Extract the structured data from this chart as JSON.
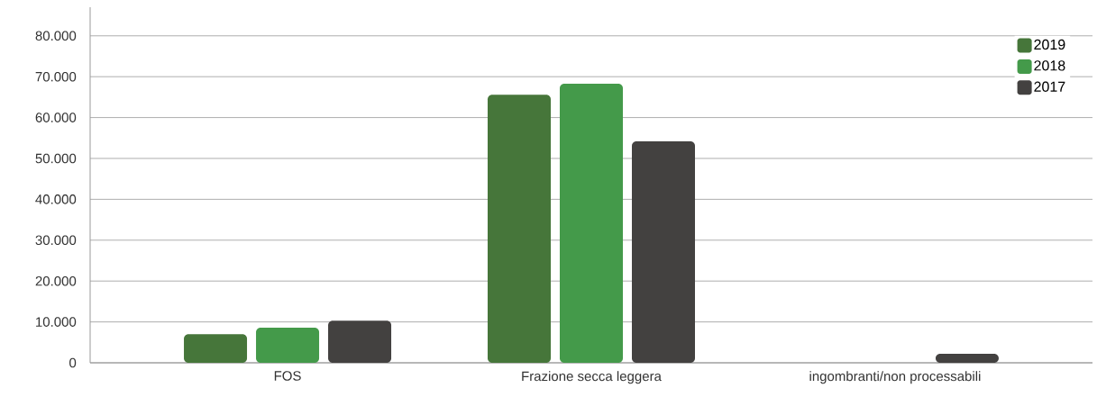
{
  "chart_data": {
    "type": "bar",
    "categories": [
      "FOS",
      "Frazione secca leggera",
      "ingombranti/non processabili"
    ],
    "series": [
      {
        "name": "2019",
        "color": "#46763a",
        "values": [
          7000,
          65600,
          0
        ]
      },
      {
        "name": "2018",
        "color": "#449a4a",
        "values": [
          8600,
          68300,
          0
        ]
      },
      {
        "name": "2017",
        "color": "#434140",
        "values": [
          10300,
          54200,
          2200
        ]
      }
    ],
    "ylim": [
      0,
      87000
    ],
    "yticks": [
      {
        "value": 0,
        "label": "0"
      },
      {
        "value": 10000,
        "label": "10.000"
      },
      {
        "value": 20000,
        "label": "20.000"
      },
      {
        "value": 30000,
        "label": "30.000"
      },
      {
        "value": 40000,
        "label": "40.000"
      },
      {
        "value": 50000,
        "label": "50.000"
      },
      {
        "value": 60000,
        "label": "60.000"
      },
      {
        "value": 70000,
        "label": "70.000"
      },
      {
        "value": 80000,
        "label": "80.000"
      }
    ],
    "grid": "y",
    "legend": "top right"
  }
}
